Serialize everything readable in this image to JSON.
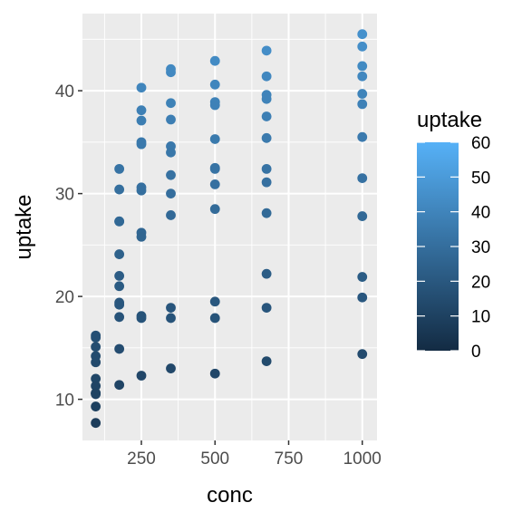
{
  "chart_data": {
    "type": "scatter",
    "title": "",
    "xlabel": "conc",
    "ylabel": "uptake",
    "xlim": [
      50,
      1050
    ],
    "ylim": [
      6,
      47.5
    ],
    "x_ticks": [
      250,
      500,
      750,
      1000
    ],
    "x_tick_labels": [
      "250",
      "500",
      "750",
      "1000"
    ],
    "y_ticks": [
      10,
      20,
      30,
      40
    ],
    "y_tick_labels": [
      "10",
      "20",
      "30",
      "40"
    ],
    "grid": true,
    "legend": {
      "title": "uptake",
      "position": "right",
      "type": "colorbar",
      "range": [
        0,
        60
      ],
      "ticks": [
        0,
        10,
        20,
        30,
        40,
        50,
        60
      ],
      "tick_labels": [
        "0",
        "10",
        "20",
        "30",
        "40",
        "50",
        "60"
      ],
      "low_color": "#132b43",
      "high_color": "#56b1f7"
    },
    "colors": {
      "panel_background": "#ebebeb",
      "grid": "#ffffff"
    },
    "points": [
      {
        "x": 95,
        "y": 16.0
      },
      {
        "x": 95,
        "y": 13.6
      },
      {
        "x": 95,
        "y": 16.2
      },
      {
        "x": 95,
        "y": 14.2
      },
      {
        "x": 95,
        "y": 9.3
      },
      {
        "x": 95,
        "y": 15.1
      },
      {
        "x": 95,
        "y": 10.6
      },
      {
        "x": 95,
        "y": 12.0
      },
      {
        "x": 95,
        "y": 11.3
      },
      {
        "x": 95,
        "y": 10.5
      },
      {
        "x": 95,
        "y": 7.7
      },
      {
        "x": 95,
        "y": 10.6
      },
      {
        "x": 175,
        "y": 30.4
      },
      {
        "x": 175,
        "y": 27.3
      },
      {
        "x": 175,
        "y": 32.4
      },
      {
        "x": 175,
        "y": 24.1
      },
      {
        "x": 175,
        "y": 27.3
      },
      {
        "x": 175,
        "y": 21.0
      },
      {
        "x": 175,
        "y": 19.2
      },
      {
        "x": 175,
        "y": 22.0
      },
      {
        "x": 175,
        "y": 19.4
      },
      {
        "x": 175,
        "y": 14.9
      },
      {
        "x": 175,
        "y": 11.4
      },
      {
        "x": 175,
        "y": 18.0
      },
      {
        "x": 250,
        "y": 34.8
      },
      {
        "x": 250,
        "y": 37.1
      },
      {
        "x": 250,
        "y": 40.3
      },
      {
        "x": 250,
        "y": 30.3
      },
      {
        "x": 250,
        "y": 35.0
      },
      {
        "x": 250,
        "y": 38.1
      },
      {
        "x": 250,
        "y": 26.2
      },
      {
        "x": 250,
        "y": 30.6
      },
      {
        "x": 250,
        "y": 25.8
      },
      {
        "x": 250,
        "y": 18.1
      },
      {
        "x": 250,
        "y": 17.9
      },
      {
        "x": 250,
        "y": 12.3
      },
      {
        "x": 350,
        "y": 37.2
      },
      {
        "x": 350,
        "y": 41.8
      },
      {
        "x": 350,
        "y": 42.1
      },
      {
        "x": 350,
        "y": 34.6
      },
      {
        "x": 350,
        "y": 38.8
      },
      {
        "x": 350,
        "y": 34.0
      },
      {
        "x": 350,
        "y": 30.0
      },
      {
        "x": 350,
        "y": 31.8
      },
      {
        "x": 350,
        "y": 27.9
      },
      {
        "x": 350,
        "y": 17.9
      },
      {
        "x": 350,
        "y": 18.9
      },
      {
        "x": 350,
        "y": 13.0
      },
      {
        "x": 500,
        "y": 35.3
      },
      {
        "x": 500,
        "y": 40.6
      },
      {
        "x": 500,
        "y": 42.9
      },
      {
        "x": 500,
        "y": 32.5
      },
      {
        "x": 500,
        "y": 38.9
      },
      {
        "x": 500,
        "y": 38.6
      },
      {
        "x": 500,
        "y": 32.4
      },
      {
        "x": 500,
        "y": 30.9
      },
      {
        "x": 500,
        "y": 28.5
      },
      {
        "x": 500,
        "y": 17.9
      },
      {
        "x": 500,
        "y": 19.5
      },
      {
        "x": 500,
        "y": 12.5
      },
      {
        "x": 675,
        "y": 39.2
      },
      {
        "x": 675,
        "y": 41.4
      },
      {
        "x": 675,
        "y": 43.9
      },
      {
        "x": 675,
        "y": 35.4
      },
      {
        "x": 675,
        "y": 39.6
      },
      {
        "x": 675,
        "y": 37.5
      },
      {
        "x": 675,
        "y": 32.4
      },
      {
        "x": 675,
        "y": 31.1
      },
      {
        "x": 675,
        "y": 28.1
      },
      {
        "x": 675,
        "y": 18.9
      },
      {
        "x": 675,
        "y": 22.2
      },
      {
        "x": 675,
        "y": 13.7
      },
      {
        "x": 1000,
        "y": 39.7
      },
      {
        "x": 1000,
        "y": 44.3
      },
      {
        "x": 1000,
        "y": 45.5
      },
      {
        "x": 1000,
        "y": 38.7
      },
      {
        "x": 1000,
        "y": 42.4
      },
      {
        "x": 1000,
        "y": 41.4
      },
      {
        "x": 1000,
        "y": 35.5
      },
      {
        "x": 1000,
        "y": 31.5
      },
      {
        "x": 1000,
        "y": 27.8
      },
      {
        "x": 1000,
        "y": 21.9
      },
      {
        "x": 1000,
        "y": 14.4
      },
      {
        "x": 1000,
        "y": 19.9
      }
    ]
  }
}
